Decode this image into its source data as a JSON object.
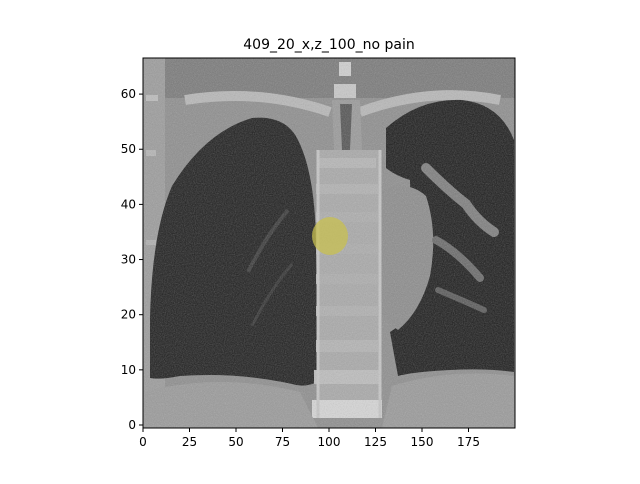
{
  "figure": {
    "title": "409_20_x,z_100_no pain",
    "image_kind": "coronal-ct-slice-with-yellow-overlay"
  },
  "axes": {
    "x_range": [
      0,
      200
    ],
    "y_range": [
      0,
      66
    ],
    "x_ticks": [
      "0",
      "25",
      "50",
      "75",
      "100",
      "125",
      "150",
      "175"
    ],
    "y_ticks": [
      "0",
      "10",
      "20",
      "30",
      "40",
      "50",
      "60"
    ]
  },
  "overlay": {
    "color": "#c8c050",
    "center_x": 101,
    "center_y": 34,
    "label_shown": false
  }
}
